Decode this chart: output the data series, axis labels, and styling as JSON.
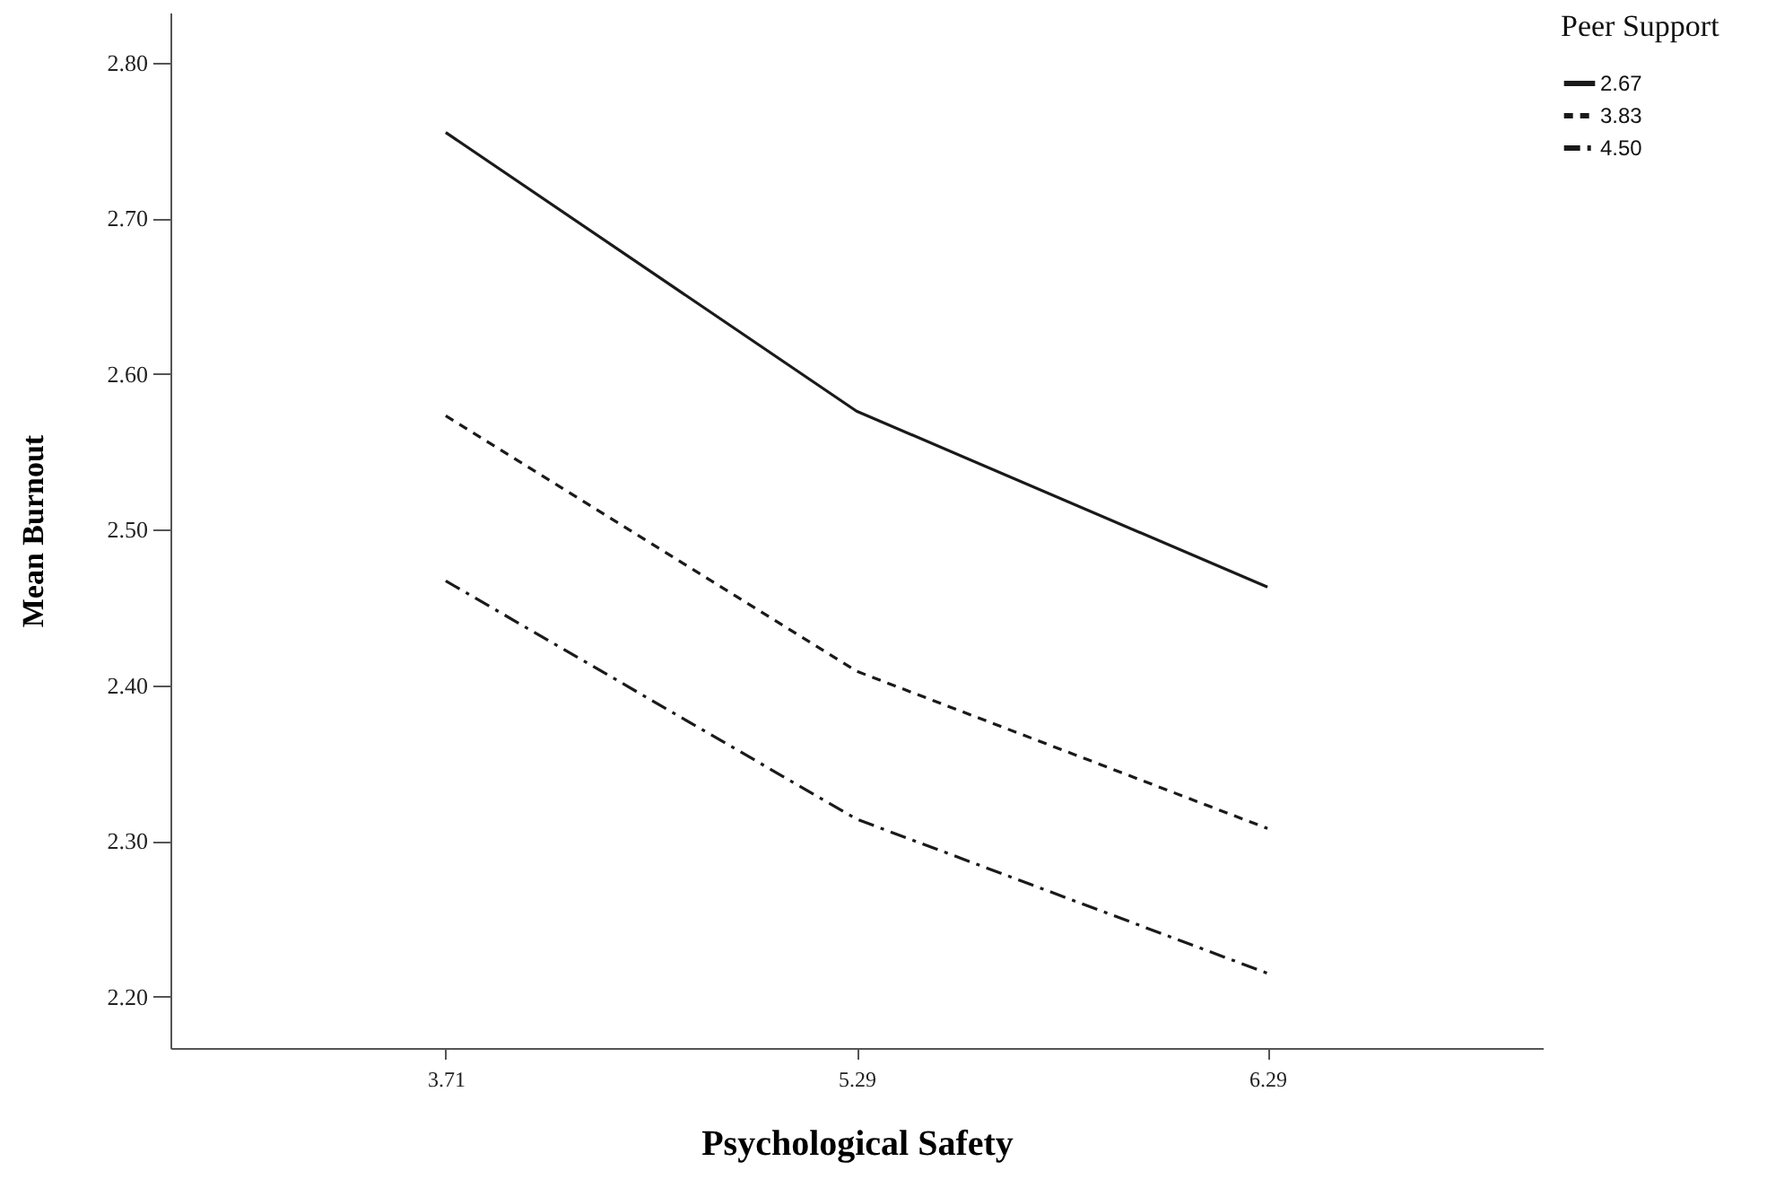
{
  "chart_data": {
    "type": "line",
    "xlabel": "Psychological Safety",
    "ylabel": "Mean Burnout",
    "legend_title": "Peer Support",
    "categories": [
      "3.71",
      "5.29",
      "6.29"
    ],
    "series": [
      {
        "name": "2.67",
        "color": "#1a1a1a",
        "line_style": "solid",
        "values": [
          2.755,
          2.576,
          2.463
        ]
      },
      {
        "name": "3.83",
        "color": "#1a1a1a",
        "line_style": "dashed",
        "values": [
          2.573,
          2.409,
          2.308
        ]
      },
      {
        "name": "4.50",
        "color": "#1a1a1a",
        "line_style": "dashdot",
        "values": [
          2.467,
          2.314,
          2.215
        ]
      }
    ],
    "ylim": [
      2.167,
      2.832
    ],
    "yticks": [
      {
        "value": 2.2,
        "label": "2.20"
      },
      {
        "value": 2.3,
        "label": "2.30"
      },
      {
        "value": 2.4,
        "label": "2.40"
      },
      {
        "value": 2.5,
        "label": "2.50"
      },
      {
        "value": 2.6,
        "label": "2.60"
      },
      {
        "value": 2.7,
        "label": "2.70"
      },
      {
        "value": 2.8,
        "label": "2.80"
      }
    ],
    "grid": false,
    "legend": "top right",
    "marker": "none"
  }
}
